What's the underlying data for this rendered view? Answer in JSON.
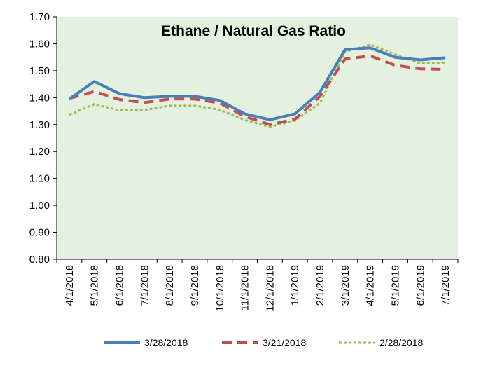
{
  "chart_data": {
    "type": "line",
    "title": "Ethane / Natural Gas Ratio",
    "xlabel": "",
    "ylabel": "",
    "ylim": [
      0.8,
      1.7
    ],
    "yticks": [
      "0.80",
      "0.90",
      "1.00",
      "1.10",
      "1.20",
      "1.30",
      "1.40",
      "1.50",
      "1.60",
      "1.70"
    ],
    "categories": [
      "4/1/2018",
      "5/1/2018",
      "6/1/2018",
      "7/1/2018",
      "8/1/2018",
      "9/1/2018",
      "10/1/2018",
      "11/1/2018",
      "12/1/2018",
      "1/1/2019",
      "2/1/2019",
      "3/1/2019",
      "4/1/2019",
      "5/1/2019",
      "6/1/2019",
      "7/1/2019"
    ],
    "grid": false,
    "legend_position": "bottom",
    "background_color": "#e4f1e0",
    "series": [
      {
        "name": "3/28/2018",
        "color": "#4a7ebb",
        "style": "solid",
        "values": [
          1.395,
          1.46,
          1.415,
          1.4,
          1.405,
          1.405,
          1.39,
          1.34,
          1.318,
          1.34,
          1.42,
          1.578,
          1.585,
          1.55,
          1.54,
          1.548
        ]
      },
      {
        "name": "3/21/2018",
        "color": "#c0504d",
        "style": "dashed",
        "values": [
          1.397,
          1.423,
          1.393,
          1.382,
          1.395,
          1.395,
          1.38,
          1.33,
          1.3,
          1.32,
          1.405,
          1.543,
          1.555,
          1.52,
          1.507,
          1.505
        ]
      },
      {
        "name": "2/28/2018",
        "color": "#9bbb59",
        "style": "dotted",
        "values": [
          1.337,
          1.376,
          1.353,
          1.354,
          1.37,
          1.37,
          1.355,
          1.317,
          1.292,
          1.315,
          1.38,
          1.57,
          1.597,
          1.56,
          1.527,
          1.527
        ]
      }
    ]
  }
}
